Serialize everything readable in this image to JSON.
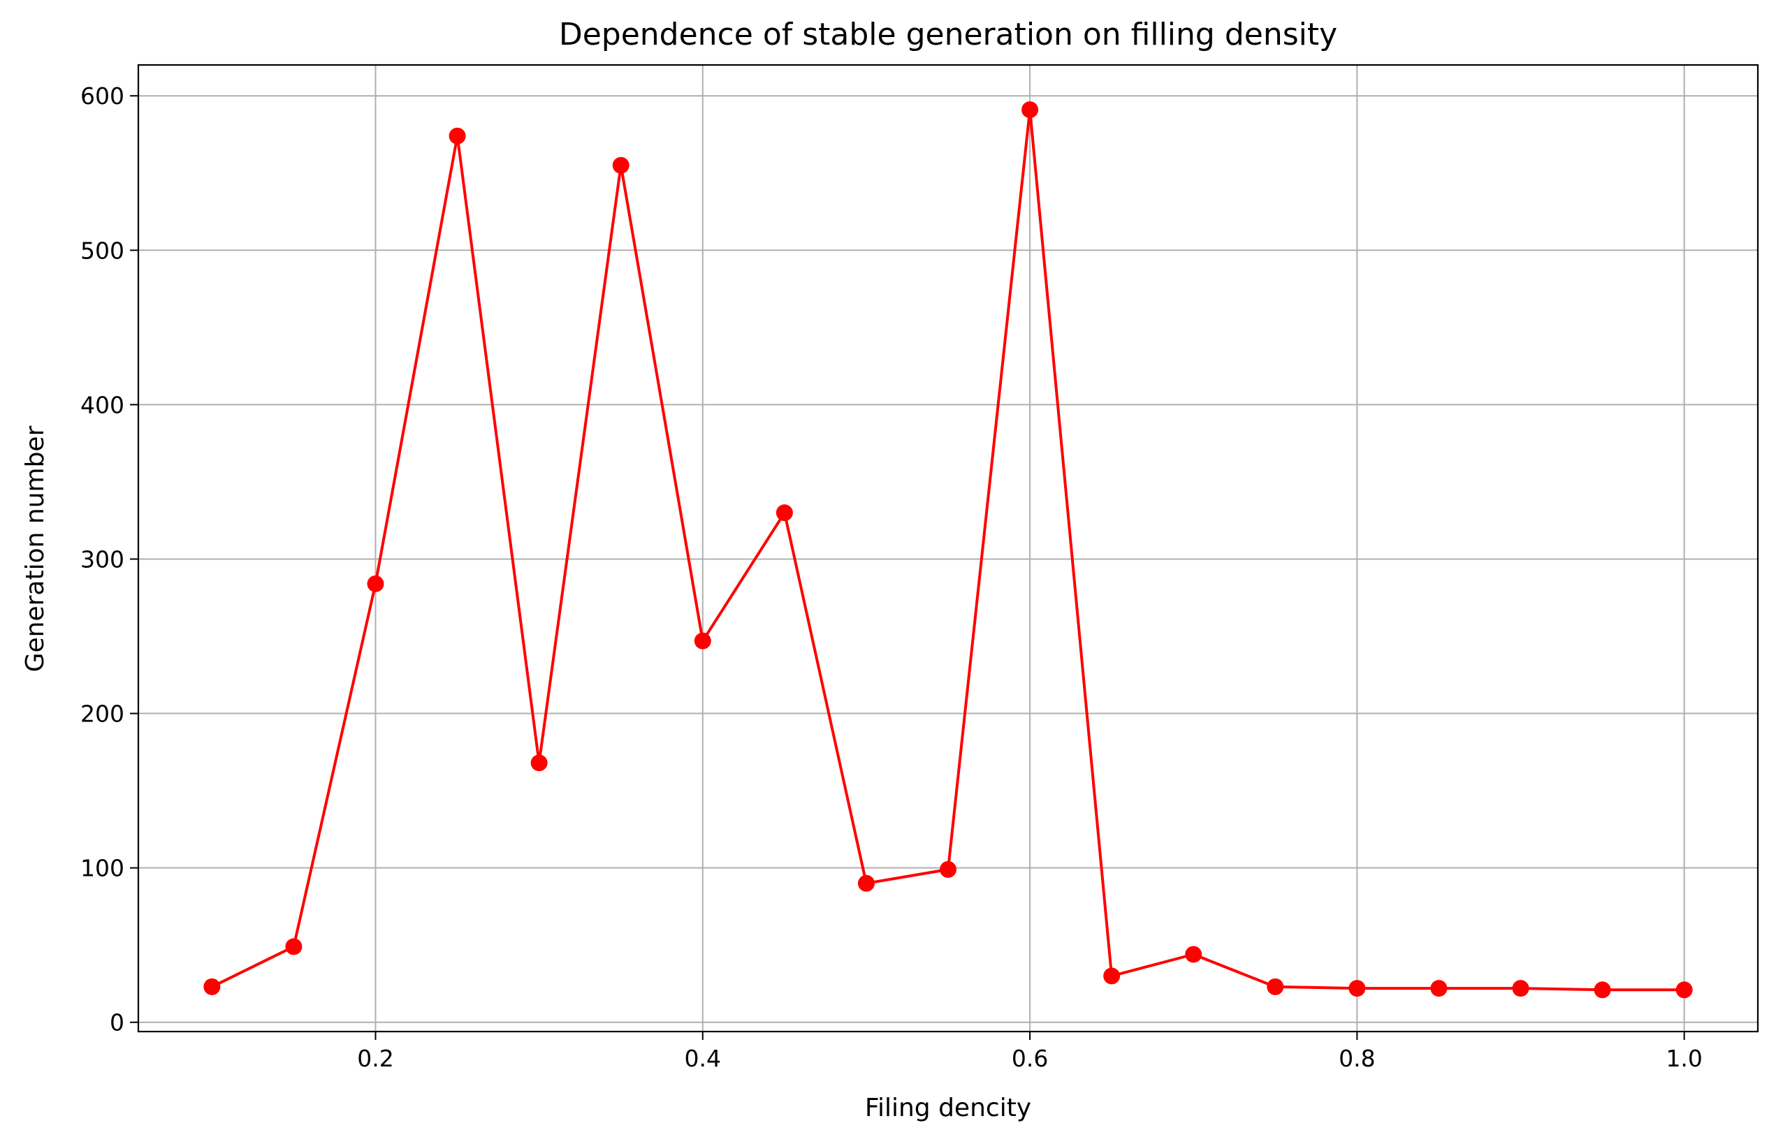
{
  "chart_data": {
    "type": "line",
    "title": "Dependence of stable generation on filling density",
    "xlabel": "Filing dencity",
    "ylabel": "Generation number",
    "xlim": [
      0.055,
      1.045
    ],
    "ylim": [
      -6,
      620
    ],
    "xticks": [
      "0.2",
      "0.4",
      "0.6",
      "0.8",
      "1.0"
    ],
    "yticks": [
      "0",
      "100",
      "200",
      "300",
      "400",
      "500",
      "600"
    ],
    "grid": true,
    "color": "#ff0000",
    "marker": "circle",
    "x": [
      0.1,
      0.15,
      0.2,
      0.25,
      0.3,
      0.35,
      0.4,
      0.45,
      0.5,
      0.55,
      0.6,
      0.65,
      0.7,
      0.75,
      0.8,
      0.85,
      0.9,
      0.95,
      1.0
    ],
    "y": [
      23,
      49,
      284,
      574,
      168,
      555,
      247,
      330,
      90,
      99,
      591,
      30,
      44,
      23,
      22,
      22,
      22,
      21,
      21
    ]
  }
}
